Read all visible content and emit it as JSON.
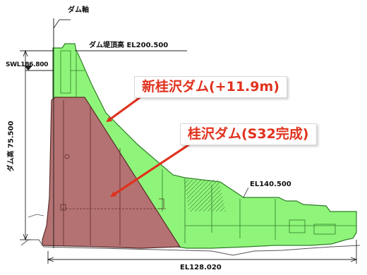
{
  "labels": {
    "dam_axis": "ダム軸",
    "crest": "ダム堤頂高 EL200.500",
    "sw": "SWL186.800",
    "height": "ダム高 75.500",
    "el_right": "EL140.500",
    "el_bottom": "EL128.020"
  },
  "callouts": {
    "new_dam": "新桂沢ダム(+11.9m)",
    "old_dam": "桂沢ダム(S32完成)"
  },
  "colors": {
    "new_dam_fill": "#8ff57a",
    "old_dam_fill": "#b57272",
    "callout_text": "#e0311d",
    "arrow": "#e0311d"
  }
}
